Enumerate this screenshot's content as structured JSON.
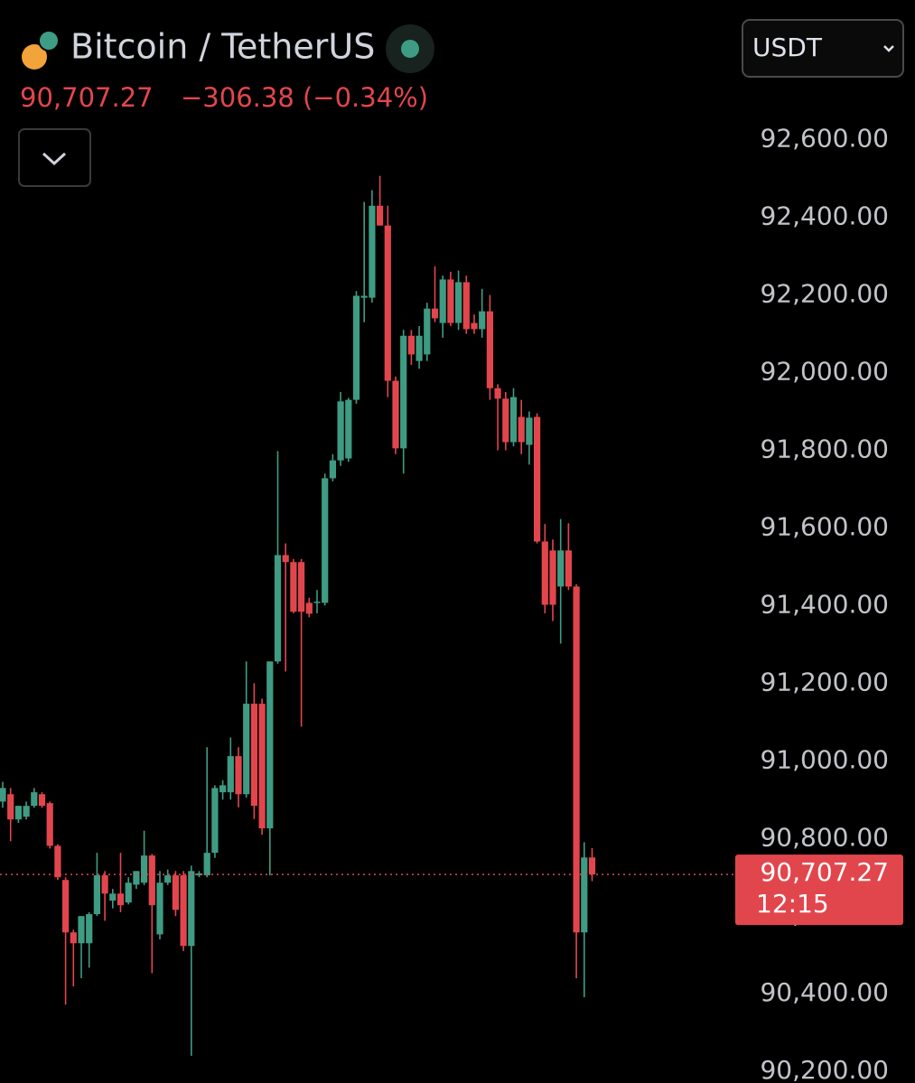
{
  "chart_data": {
    "type": "candlestick",
    "title": "Bitcoin / TetherUS",
    "price": "90,707.27",
    "change": "−306.38 (−0.34%)",
    "quote_currency": "USDT",
    "last_price": {
      "value": 90707.27,
      "label": "90,707.27"
    },
    "countdown": "12:15",
    "up_color": "#3f9c84",
    "down_color": "#e2464d",
    "ylim": [
      90170,
      92960
    ],
    "yticks": [
      {
        "value": 92600,
        "label": "92,600.00"
      },
      {
        "value": 92400,
        "label": "92,400.00"
      },
      {
        "value": 92200,
        "label": "92,200.00"
      },
      {
        "value": 92000,
        "label": "92,000.00"
      },
      {
        "value": 91800,
        "label": "91,800.00"
      },
      {
        "value": 91600,
        "label": "91,600.00"
      },
      {
        "value": 91400,
        "label": "91,400.00"
      },
      {
        "value": 91200,
        "label": "91,200.00"
      },
      {
        "value": 91000,
        "label": "91,000.00"
      },
      {
        "value": 90800,
        "label": "90,800.00"
      },
      {
        "value": 90600,
        "label": "90,600.00"
      },
      {
        "value": 90400,
        "label": "90,400.00"
      },
      {
        "value": 90200,
        "label": "90,200.00"
      }
    ],
    "open": [
      90895,
      90914,
      90849,
      90856,
      90884,
      90914,
      90891,
      90781,
      90693,
      90558,
      90530,
      90530,
      90605,
      90705,
      90640,
      90658,
      90635,
      90681,
      90686,
      90756,
      90553,
      90686,
      90705,
      90705,
      90523,
      90705,
      90705,
      90763,
      90919,
      90919,
      91012,
      90914,
      91147,
      91147,
      90826,
      91256,
      91530,
      91512,
      91512,
      91407,
      91407,
      91407,
      91728,
      91774,
      91779,
      91930,
      92193,
      92193,
      92430,
      92379,
      91979,
      91805,
      92095,
      92030,
      92047,
      92165,
      92128,
      92240,
      92128,
      92233,
      92128,
      92112,
      92158,
      91960,
      91933,
      91821,
      91886,
      91814,
      91886,
      91565,
      91542,
      91449,
      91542,
      91449,
      90558,
      90751
    ],
    "high": [
      90946,
      90930,
      90884,
      90895,
      90930,
      90919,
      90895,
      90785,
      90700,
      90565,
      90600,
      90610,
      90763,
      90716,
      90670,
      90763,
      90700,
      90716,
      90820,
      90760,
      90716,
      90720,
      90716,
      90716,
      90730,
      90716,
      91035,
      90937,
      90950,
      91060,
      91035,
      91256,
      91200,
      91160,
      91256,
      91798,
      91560,
      91520,
      91520,
      91420,
      91440,
      91740,
      91790,
      91950,
      91935,
      92210,
      92440,
      92470,
      92507,
      92430,
      91990,
      92110,
      92110,
      92120,
      92180,
      92274,
      92250,
      92260,
      92263,
      92250,
      92150,
      92216,
      92200,
      91970,
      91950,
      91960,
      91930,
      91900,
      91895,
      91610,
      91570,
      91623,
      91612,
      91455,
      90790,
      90775
    ],
    "low": [
      90879,
      90793,
      90840,
      90849,
      90879,
      90879,
      90774,
      90693,
      90372,
      90419,
      90440,
      90467,
      90600,
      90588,
      90620,
      90610,
      90630,
      90670,
      90680,
      90453,
      90540,
      90680,
      90600,
      90510,
      90240,
      90700,
      90700,
      90750,
      90900,
      90900,
      90880,
      90905,
      90850,
      90810,
      90705,
      91250,
      91230,
      91380,
      91088,
      91370,
      91380,
      91400,
      91720,
      91760,
      91770,
      91920,
      92130,
      92180,
      92379,
      91937,
      91790,
      91740,
      92020,
      92010,
      92030,
      92130,
      92090,
      92120,
      92110,
      92100,
      92100,
      92090,
      91930,
      91800,
      91800,
      91810,
      91790,
      91763,
      91560,
      91380,
      91360,
      91302,
      91440,
      90440,
      90391,
      90690
    ],
    "close": [
      90930,
      90849,
      90884,
      90884,
      90919,
      90884,
      90781,
      90700,
      90558,
      90530,
      90600,
      90605,
      90705,
      90658,
      90658,
      90628,
      90686,
      90716,
      90756,
      90628,
      90686,
      90705,
      90616,
      90523,
      90716,
      90710,
      90763,
      90930,
      90937,
      91012,
      90914,
      91147,
      90884,
      90826,
      91256,
      91530,
      91512,
      91384,
      91384,
      91379,
      91410,
      91728,
      91774,
      91926,
      91930,
      92198,
      92198,
      92430,
      92379,
      91979,
      91805,
      92095,
      92047,
      92095,
      92165,
      92140,
      92240,
      92128,
      92233,
      92112,
      92112,
      92158,
      91960,
      91933,
      91821,
      91937,
      91821,
      91884,
      91565,
      91402,
      91402,
      91542,
      91449,
      90558,
      90751,
      90707.27
    ]
  }
}
